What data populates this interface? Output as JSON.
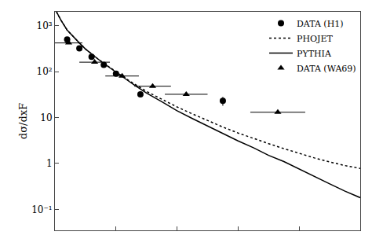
{
  "chart_data": {
    "type": "line",
    "ylabel": "dσ/dxF",
    "xlim": [
      0.0,
      1.0
    ],
    "xticks": [
      0.0,
      0.2,
      0.4,
      0.6,
      0.8,
      1.0
    ],
    "ylim": [
      0.035,
      2000
    ],
    "yticks": [
      {
        "value": 0.1,
        "label": "10⁻¹"
      },
      1,
      10,
      {
        "value": 100,
        "label": "10²"
      },
      {
        "value": 1000,
        "label": "10³"
      }
    ],
    "log": "y",
    "grid": false,
    "legend": "upper right",
    "tick_labels": "y",
    "series": [
      {
        "name": "DATA (H1)",
        "type": "scatter",
        "marker": "circle",
        "color": "#000000",
        "x": [
          0.04,
          0.08,
          0.12,
          0.16,
          0.2,
          0.28,
          0.55
        ],
        "values": [
          500,
          320,
          210,
          140,
          90,
          32,
          23
        ],
        "yerr_low": [
          25,
          18,
          14,
          10,
          8,
          4,
          5
        ],
        "yerr_high": [
          25,
          18,
          14,
          10,
          8,
          4,
          5
        ]
      },
      {
        "name": "PHOJET",
        "type": "line",
        "line_style": "dotted",
        "color": "#000000",
        "x": [
          0.005,
          0.02,
          0.04,
          0.06,
          0.08,
          0.1,
          0.12,
          0.14,
          0.16,
          0.18,
          0.2,
          0.22,
          0.24,
          0.26,
          0.28,
          0.3,
          0.35,
          0.4,
          0.45,
          0.5,
          0.55,
          0.6,
          0.65,
          0.7,
          0.75,
          0.8,
          0.85,
          0.9,
          0.95,
          1.0
        ],
        "values": [
          2000,
          1300,
          800,
          570,
          420,
          310,
          240,
          190,
          152,
          122,
          98,
          80,
          65,
          54,
          44,
          37,
          25,
          17,
          12,
          8.5,
          6.2,
          4.6,
          3.5,
          2.7,
          2.1,
          1.65,
          1.32,
          1.08,
          0.9,
          0.78
        ]
      },
      {
        "name": "PYTHIA",
        "type": "line",
        "line_style": "solid",
        "color": "#000000",
        "x": [
          0.005,
          0.02,
          0.04,
          0.06,
          0.08,
          0.1,
          0.12,
          0.14,
          0.16,
          0.18,
          0.2,
          0.22,
          0.24,
          0.26,
          0.28,
          0.3,
          0.35,
          0.4,
          0.45,
          0.5,
          0.55,
          0.6,
          0.65,
          0.7,
          0.75,
          0.8,
          0.85,
          0.9,
          0.95,
          1.0
        ],
        "values": [
          2000,
          1300,
          800,
          570,
          420,
          310,
          240,
          190,
          150,
          120,
          96,
          77,
          63,
          51,
          42,
          34,
          22,
          14,
          9.5,
          6.5,
          4.5,
          3.1,
          2.2,
          1.5,
          1.1,
          0.75,
          0.52,
          0.36,
          0.25,
          0.18
        ]
      },
      {
        "name": "DATA (WA69)",
        "type": "scatter",
        "marker": "triangle",
        "color": "#000000",
        "x": [
          0.045,
          0.13,
          0.22,
          0.32,
          0.43,
          0.73
        ],
        "values": [
          420,
          160,
          80,
          48,
          32,
          13
        ],
        "xerr": [
          0.045,
          0.05,
          0.055,
          0.06,
          0.07,
          0.09
        ]
      }
    ]
  }
}
